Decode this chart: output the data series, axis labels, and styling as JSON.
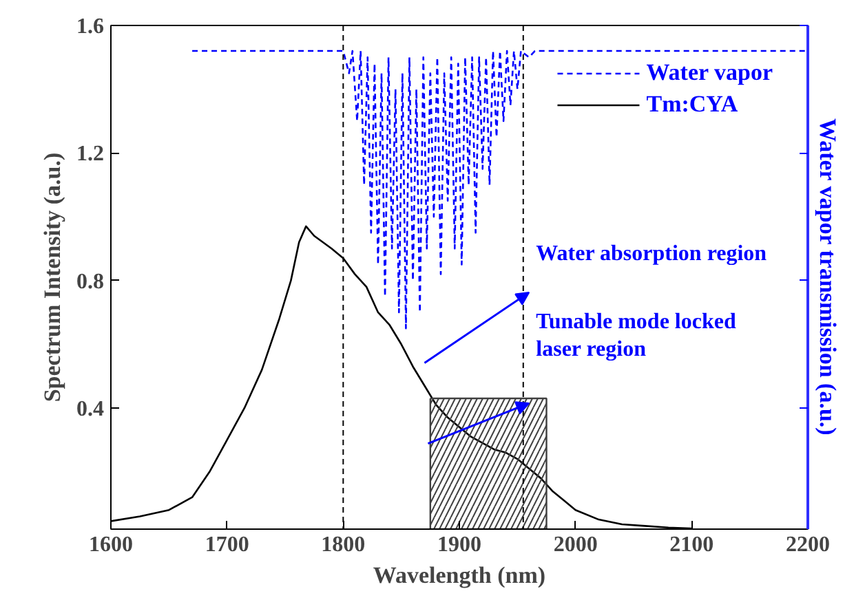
{
  "chart_data": {
    "type": "line",
    "xlabel": "Wavelength (nm)",
    "ylabel": "Spectrum Intensity (a.u.)",
    "y2label": "Water vapor transmission (a.u.)",
    "xlim": [
      1600,
      2200
    ],
    "xticks": [
      1600,
      1700,
      1800,
      1900,
      2000,
      2100,
      2200
    ],
    "ylim": [
      0.02,
      1.6
    ],
    "yticks": [
      0.4,
      0.8,
      1.2,
      1.6
    ],
    "legend": "top right",
    "grid": false,
    "series": [
      {
        "name": "Water vapor",
        "color": "#0000ff",
        "line_style": "dashed",
        "x": [
          1670,
          1800,
          1805,
          1808,
          1812,
          1815,
          1818,
          1821,
          1824,
          1827,
          1830,
          1833,
          1836,
          1839,
          1842,
          1845,
          1848,
          1851,
          1854,
          1857,
          1860,
          1863,
          1866,
          1869,
          1872,
          1875,
          1878,
          1881,
          1884,
          1887,
          1890,
          1893,
          1896,
          1899,
          1902,
          1905,
          1908,
          1911,
          1914,
          1917,
          1920,
          1923,
          1926,
          1929,
          1932,
          1935,
          1938,
          1941,
          1944,
          1947,
          1950,
          1953,
          1960,
          1965,
          2200
        ],
        "values": [
          1.52,
          1.52,
          1.45,
          1.52,
          1.3,
          1.52,
          1.1,
          1.5,
          0.95,
          1.48,
          0.85,
          1.45,
          0.75,
          1.5,
          0.9,
          1.4,
          0.7,
          1.45,
          0.65,
          1.5,
          0.8,
          1.4,
          0.7,
          1.5,
          0.9,
          1.45,
          1.0,
          1.5,
          0.82,
          1.45,
          1.05,
          1.5,
          0.9,
          1.48,
          0.85,
          1.5,
          1.1,
          1.5,
          0.95,
          1.5,
          1.15,
          1.5,
          1.1,
          1.52,
          1.25,
          1.52,
          1.3,
          1.52,
          1.35,
          1.52,
          1.4,
          1.52,
          1.5,
          1.52,
          1.52
        ]
      },
      {
        "name": "Tm:CYA",
        "color": "#000000",
        "line_style": "solid",
        "x": [
          1600,
          1625,
          1650,
          1670,
          1685,
          1700,
          1715,
          1730,
          1745,
          1755,
          1762,
          1768,
          1775,
          1790,
          1800,
          1810,
          1820,
          1830,
          1840,
          1850,
          1860,
          1870,
          1880,
          1890,
          1900,
          1910,
          1920,
          1930,
          1940,
          1950,
          1960,
          1970,
          1980,
          1990,
          2000,
          2020,
          2040,
          2060,
          2080,
          2100
        ],
        "values": [
          0.045,
          0.06,
          0.08,
          0.12,
          0.2,
          0.3,
          0.4,
          0.52,
          0.68,
          0.8,
          0.92,
          0.97,
          0.94,
          0.9,
          0.87,
          0.82,
          0.78,
          0.7,
          0.66,
          0.6,
          0.53,
          0.47,
          0.41,
          0.37,
          0.34,
          0.31,
          0.29,
          0.27,
          0.26,
          0.24,
          0.21,
          0.18,
          0.14,
          0.11,
          0.08,
          0.05,
          0.035,
          0.03,
          0.025,
          0.022
        ]
      },
      {
        "type": "area",
        "color": "#404040",
        "x": [
          1875,
          1975
        ],
        "values": [
          0.43,
          0.43
        ]
      }
    ],
    "ref_lines": [
      {
        "axis": "x",
        "value": 1800,
        "line_style": "dashed",
        "color": "#000000"
      },
      {
        "axis": "x",
        "value": 1955,
        "line_style": "dashed",
        "color": "#000000"
      }
    ],
    "annotations": [
      "Water absorption region",
      "Tunable mode locked\nlaser region"
    ]
  }
}
